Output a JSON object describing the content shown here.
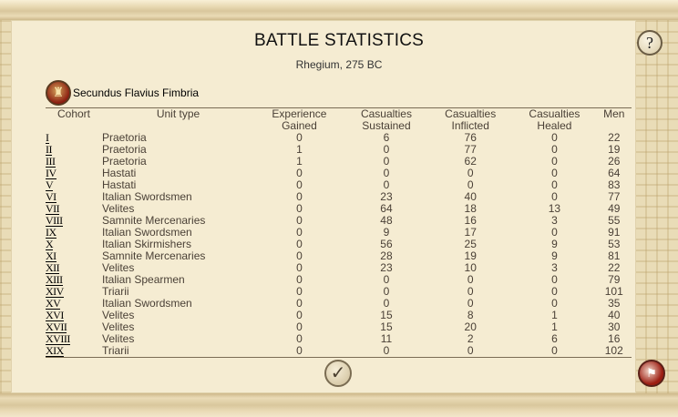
{
  "title": "BATTLE STATISTICS",
  "subtitle": "Rhegium, 275 BC",
  "help_icon": "?",
  "general": {
    "name": "Secundus Flavius Fimbria",
    "avatar_icon": "general-portrait-icon"
  },
  "headers": {
    "cohort": "Cohort",
    "unit_type": "Unit type",
    "experience_1": "Experience",
    "experience_2": "Gained",
    "sustained_1": "Casualties",
    "sustained_2": "Sustained",
    "inflicted_1": "Casualties",
    "inflicted_2": "Inflicted",
    "healed_1": "Casualties",
    "healed_2": "Healed",
    "men": "Men"
  },
  "rows": [
    {
      "cohort": "I",
      "type": "Praetoria",
      "exp": "0",
      "sus": "6",
      "inf": "76",
      "heal": "0",
      "men": "22"
    },
    {
      "cohort": "II",
      "type": "Praetoria",
      "exp": "1",
      "sus": "0",
      "inf": "77",
      "heal": "0",
      "men": "19"
    },
    {
      "cohort": "III",
      "type": "Praetoria",
      "exp": "1",
      "sus": "0",
      "inf": "62",
      "heal": "0",
      "men": "26"
    },
    {
      "cohort": "IV",
      "type": "Hastati",
      "exp": "0",
      "sus": "0",
      "inf": "0",
      "heal": "0",
      "men": "64"
    },
    {
      "cohort": "V",
      "type": "Hastati",
      "exp": "0",
      "sus": "0",
      "inf": "0",
      "heal": "0",
      "men": "83"
    },
    {
      "cohort": "VI",
      "type": "Italian Swordsmen",
      "exp": "0",
      "sus": "23",
      "inf": "40",
      "heal": "0",
      "men": "77"
    },
    {
      "cohort": "VII",
      "type": "Velites",
      "exp": "0",
      "sus": "64",
      "inf": "18",
      "heal": "13",
      "men": "49"
    },
    {
      "cohort": "VIII",
      "type": "Samnite Mercenaries",
      "exp": "0",
      "sus": "48",
      "inf": "16",
      "heal": "3",
      "men": "55"
    },
    {
      "cohort": "IX",
      "type": "Italian Swordsmen",
      "exp": "0",
      "sus": "9",
      "inf": "17",
      "heal": "0",
      "men": "91"
    },
    {
      "cohort": "X",
      "type": "Italian Skirmishers",
      "exp": "0",
      "sus": "56",
      "inf": "25",
      "heal": "9",
      "men": "53"
    },
    {
      "cohort": "XI",
      "type": "Samnite Mercenaries",
      "exp": "0",
      "sus": "28",
      "inf": "19",
      "heal": "9",
      "men": "81"
    },
    {
      "cohort": "XII",
      "type": "Velites",
      "exp": "0",
      "sus": "23",
      "inf": "10",
      "heal": "3",
      "men": "22"
    },
    {
      "cohort": "XIII",
      "type": "Italian Spearmen",
      "exp": "0",
      "sus": "0",
      "inf": "0",
      "heal": "0",
      "men": "79"
    },
    {
      "cohort": "XIV",
      "type": "Triarii",
      "exp": "0",
      "sus": "0",
      "inf": "0",
      "heal": "0",
      "men": "101"
    },
    {
      "cohort": "XV",
      "type": "Italian Swordsmen",
      "exp": "0",
      "sus": "0",
      "inf": "0",
      "heal": "0",
      "men": "35"
    },
    {
      "cohort": "XVI",
      "type": "Velites",
      "exp": "0",
      "sus": "15",
      "inf": "8",
      "heal": "1",
      "men": "40"
    },
    {
      "cohort": "XVII",
      "type": "Velites",
      "exp": "0",
      "sus": "15",
      "inf": "20",
      "heal": "1",
      "men": "30"
    },
    {
      "cohort": "XVIII",
      "type": "Velites",
      "exp": "0",
      "sus": "11",
      "inf": "2",
      "heal": "6",
      "men": "16"
    },
    {
      "cohort": "XIX",
      "type": "Triarii",
      "exp": "0",
      "sus": "0",
      "inf": "0",
      "heal": "0",
      "men": "102"
    }
  ],
  "footer": {
    "confirm_icon": "checkmark-icon",
    "confirm_glyph": "✓",
    "corner_icon": "unit-banner-icon"
  },
  "colors": {
    "background": "#f5ecd2",
    "text": "#4a4036",
    "accent": "#8b1d10"
  }
}
